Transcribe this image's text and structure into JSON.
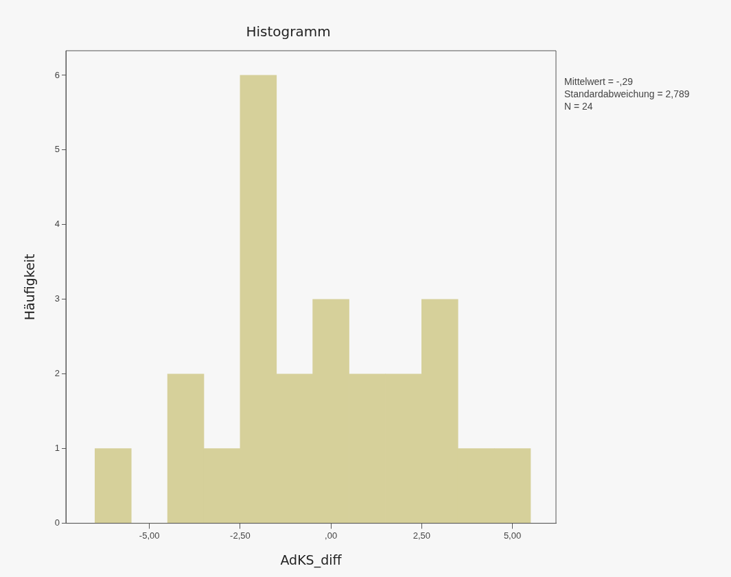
{
  "chart_data": {
    "type": "histogram",
    "title": "Histogramm",
    "xlabel": "AdKS_diff",
    "ylabel": "Häufigkeit",
    "bins": [
      -6.5,
      -5.5,
      -4.5,
      -3.5,
      -2.5,
      -1.5,
      -0.5,
      0.5,
      1.5,
      2.5,
      3.5,
      4.5,
      5.5
    ],
    "values": [
      1,
      0,
      2,
      1,
      6,
      2,
      3,
      2,
      2,
      3,
      1,
      1
    ],
    "color": "#d6d09a",
    "xlim": [
      -7.3,
      6.2
    ],
    "xticks": [
      {
        "value": -5,
        "label": "-5,00"
      },
      {
        "value": -2.5,
        "label": "-2,50"
      },
      {
        "value": 0,
        "label": ",00"
      },
      {
        "value": 2.5,
        "label": "2,50"
      },
      {
        "value": 5,
        "label": "5,00"
      }
    ],
    "ylim": [
      0,
      6.33
    ],
    "yticks": [
      0,
      1,
      2,
      3,
      4,
      5,
      6
    ],
    "grid": false,
    "legend": false,
    "annotations": [
      "Mittelwert = -,29",
      "Standardabweichung = 2,789",
      "N = 24"
    ]
  }
}
